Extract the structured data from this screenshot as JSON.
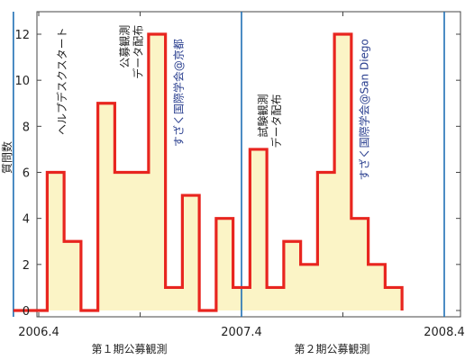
{
  "chart_data": {
    "type": "line",
    "style": "step-histogram",
    "title": "",
    "ylabel": "質問数",
    "ylim": [
      0,
      13
    ],
    "yticks": [
      0,
      2,
      4,
      6,
      8,
      10,
      12
    ],
    "xticks": [
      {
        "label": "2006.4",
        "month": 0
      },
      {
        "label": "2007.4",
        "month": 12
      },
      {
        "label": "2008.4",
        "month": 24
      }
    ],
    "period_labels": [
      {
        "label": "第１期公募観測",
        "center_month": 6
      },
      {
        "label": "第２期公募観測",
        "center_month": 18
      }
    ],
    "monthly_counts": [
      0,
      0,
      6,
      3,
      0,
      9,
      6,
      6,
      12,
      1,
      5,
      0,
      4,
      1,
      7,
      1,
      3,
      2,
      6,
      12,
      4,
      2,
      1
    ],
    "start_month": -1.5,
    "vertical_markers": [
      -1.5,
      12,
      24
    ],
    "colors": {
      "line": "#e8251f",
      "fill": "#fbf4c6",
      "marker": "#1f6fb5",
      "ann_black": "#222222",
      "ann_blue": "#2a3f8f"
    },
    "annotations": [
      {
        "lines": [
          "ヘルプデスクスタート"
        ],
        "month": 1.6,
        "top_value": 12.3,
        "color": "black"
      },
      {
        "lines": [
          "公募観測",
          "データ配布"
        ],
        "month": 5.3,
        "top_value": 12.4,
        "color": "black"
      },
      {
        "lines": [
          "すざく国際学会@京都"
        ],
        "month": 8.5,
        "top_value": 11.8,
        "color": "blue"
      },
      {
        "lines": [
          "試験観測",
          "データ配布"
        ],
        "month": 13.5,
        "top_value": 9.4,
        "color": "black"
      },
      {
        "lines": [
          "すざく国際学会@San Diego"
        ],
        "month": 19.5,
        "top_value": 11.8,
        "color": "blue"
      }
    ]
  }
}
